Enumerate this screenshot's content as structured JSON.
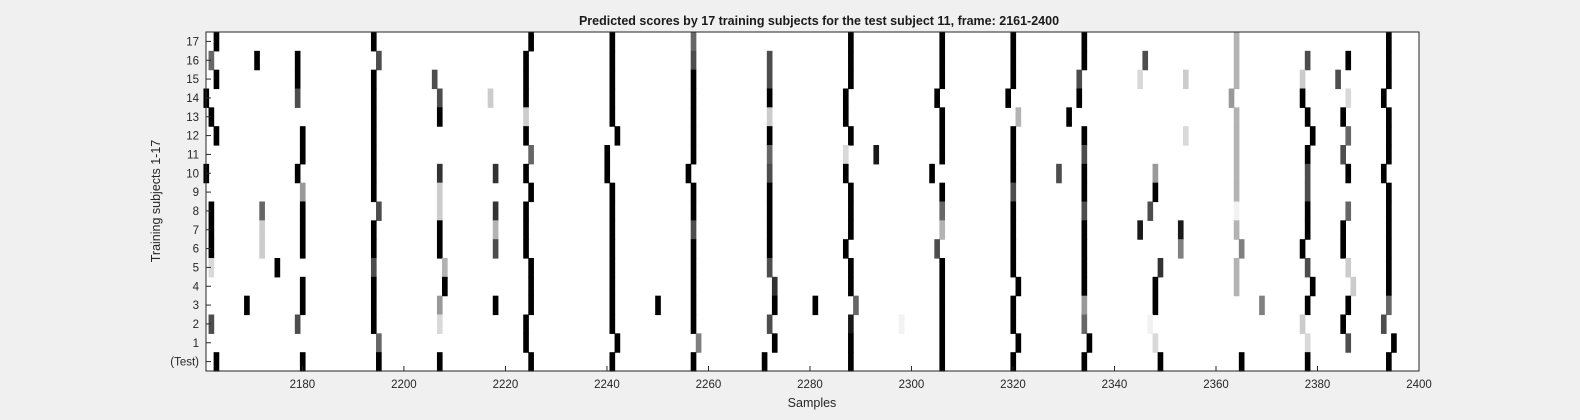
{
  "chart_data": {
    "type": "heatmap",
    "title": "Predicted scores by 17 training subjects for the test subject 11, frame: 2161-2400",
    "xlabel": "Samples",
    "ylabel": "Training subjects 1-17",
    "xlim": [
      2161,
      2400
    ],
    "x_ticks": [
      2180,
      2200,
      2220,
      2240,
      2260,
      2280,
      2300,
      2320,
      2340,
      2360,
      2380,
      2400
    ],
    "row_labels": [
      "17",
      "16",
      "15",
      "14",
      "13",
      "12",
      "11",
      "10",
      "9",
      "8",
      "7",
      "6",
      "5",
      "4",
      "3",
      "2",
      "1",
      "(Test)"
    ],
    "colormap": "gray (white = 0, black = 1)",
    "background_color": "#ffffff",
    "marks": [
      {
        "row": "17",
        "events": [
          [
            2163,
            1
          ],
          [
            2194,
            1
          ],
          [
            2225,
            1
          ],
          [
            2241,
            1
          ],
          [
            2257,
            0.6
          ],
          [
            2288,
            1
          ],
          [
            2306,
            1
          ],
          [
            2320,
            1
          ],
          [
            2334,
            1
          ],
          [
            2364,
            0.3
          ],
          [
            2394,
            1
          ]
        ]
      },
      {
        "row": "16",
        "events": [
          [
            2162,
            0.6
          ],
          [
            2171,
            1
          ],
          [
            2179,
            1
          ],
          [
            2195,
            0.7
          ],
          [
            2224,
            1
          ],
          [
            2241,
            1
          ],
          [
            2257,
            0.7
          ],
          [
            2272,
            0.7
          ],
          [
            2288,
            1
          ],
          [
            2306,
            1
          ],
          [
            2320,
            1
          ],
          [
            2334,
            1
          ],
          [
            2346,
            0.7
          ],
          [
            2364,
            0.3
          ],
          [
            2378,
            0.7
          ],
          [
            2386,
            1
          ],
          [
            2394,
            1
          ]
        ]
      },
      {
        "row": "15",
        "events": [
          [
            2163,
            1
          ],
          [
            2179,
            1
          ],
          [
            2194,
            1
          ],
          [
            2206,
            0.7
          ],
          [
            2224,
            1
          ],
          [
            2241,
            1
          ],
          [
            2257,
            1
          ],
          [
            2272,
            0.7
          ],
          [
            2288,
            1
          ],
          [
            2306,
            1
          ],
          [
            2320,
            1
          ],
          [
            2333,
            0.7
          ],
          [
            2345,
            0.15
          ],
          [
            2354,
            0.2
          ],
          [
            2364,
            0.3
          ],
          [
            2377,
            0.2
          ],
          [
            2384,
            0.7
          ],
          [
            2394,
            1
          ]
        ]
      },
      {
        "row": "14",
        "events": [
          [
            2161,
            1
          ],
          [
            2179,
            0.7
          ],
          [
            2194,
            1
          ],
          [
            2207,
            0.7
          ],
          [
            2217,
            0.2
          ],
          [
            2224,
            1
          ],
          [
            2241,
            1
          ],
          [
            2257,
            1
          ],
          [
            2272,
            1
          ],
          [
            2287,
            1
          ],
          [
            2305,
            1
          ],
          [
            2319,
            1
          ],
          [
            2333,
            1
          ],
          [
            2363,
            0.4
          ],
          [
            2377,
            1
          ],
          [
            2386,
            0.15
          ],
          [
            2393,
            1
          ]
        ]
      },
      {
        "row": "13",
        "events": [
          [
            2162,
            1
          ],
          [
            2194,
            1
          ],
          [
            2207,
            1
          ],
          [
            2224,
            0.2
          ],
          [
            2241,
            1
          ],
          [
            2257,
            1
          ],
          [
            2272,
            0.2
          ],
          [
            2287,
            1
          ],
          [
            2306,
            1
          ],
          [
            2321,
            0.3
          ],
          [
            2331,
            1
          ],
          [
            2364,
            0.3
          ],
          [
            2378,
            1
          ],
          [
            2385,
            1
          ],
          [
            2394,
            1
          ]
        ]
      },
      {
        "row": "12",
        "events": [
          [
            2163,
            1
          ],
          [
            2180,
            1
          ],
          [
            2194,
            1
          ],
          [
            2224,
            1
          ],
          [
            2242,
            1
          ],
          [
            2257,
            1
          ],
          [
            2272,
            1
          ],
          [
            2288,
            1
          ],
          [
            2306,
            1
          ],
          [
            2320,
            1
          ],
          [
            2334,
            1
          ],
          [
            2354,
            0.15
          ],
          [
            2364,
            0.3
          ],
          [
            2379,
            1
          ],
          [
            2386,
            0.6
          ],
          [
            2394,
            1
          ]
        ]
      },
      {
        "row": "11",
        "events": [
          [
            2180,
            1
          ],
          [
            2194,
            1
          ],
          [
            2225,
            0.6
          ],
          [
            2240,
            1
          ],
          [
            2257,
            1
          ],
          [
            2272,
            0.6
          ],
          [
            2287,
            0.15
          ],
          [
            2293,
            0.9
          ],
          [
            2306,
            1
          ],
          [
            2320,
            1
          ],
          [
            2334,
            0.7
          ],
          [
            2364,
            0.3
          ],
          [
            2378,
            1
          ],
          [
            2385,
            0.7
          ],
          [
            2394,
            1
          ]
        ]
      },
      {
        "row": "10",
        "events": [
          [
            2161,
            1
          ],
          [
            2179,
            1
          ],
          [
            2194,
            1
          ],
          [
            2207,
            0.8
          ],
          [
            2218,
            0.8
          ],
          [
            2224,
            1
          ],
          [
            2240,
            1
          ],
          [
            2256,
            1
          ],
          [
            2272,
            0.7
          ],
          [
            2287,
            1
          ],
          [
            2304,
            1
          ],
          [
            2320,
            1
          ],
          [
            2329,
            0.7
          ],
          [
            2334,
            1
          ],
          [
            2348,
            0.4
          ],
          [
            2364,
            0.3
          ],
          [
            2378,
            0.7
          ],
          [
            2386,
            1
          ],
          [
            2393,
            1
          ]
        ]
      },
      {
        "row": "9",
        "events": [
          [
            2180,
            0.4
          ],
          [
            2194,
            1
          ],
          [
            2207,
            0.2
          ],
          [
            2225,
            1
          ],
          [
            2241,
            1
          ],
          [
            2257,
            1
          ],
          [
            2272,
            1
          ],
          [
            2288,
            1
          ],
          [
            2306,
            1
          ],
          [
            2320,
            0.7
          ],
          [
            2334,
            1
          ],
          [
            2348,
            1
          ],
          [
            2364,
            0.3
          ],
          [
            2378,
            0.7
          ],
          [
            2394,
            1
          ]
        ]
      },
      {
        "row": "8",
        "events": [
          [
            2162,
            1
          ],
          [
            2172,
            0.6
          ],
          [
            2180,
            1
          ],
          [
            2195,
            0.7
          ],
          [
            2207,
            0.2
          ],
          [
            2218,
            0.8
          ],
          [
            2224,
            1
          ],
          [
            2241,
            1
          ],
          [
            2257,
            1
          ],
          [
            2272,
            1
          ],
          [
            2288,
            1
          ],
          [
            2306,
            0.6
          ],
          [
            2320,
            1
          ],
          [
            2334,
            0.7
          ],
          [
            2347,
            0.7
          ],
          [
            2364,
            0.05
          ],
          [
            2378,
            1
          ],
          [
            2386,
            0.6
          ],
          [
            2394,
            1
          ]
        ]
      },
      {
        "row": "7",
        "events": [
          [
            2162,
            1
          ],
          [
            2172,
            0.2
          ],
          [
            2180,
            1
          ],
          [
            2194,
            1
          ],
          [
            2207,
            1
          ],
          [
            2218,
            0.3
          ],
          [
            2224,
            1
          ],
          [
            2241,
            1
          ],
          [
            2257,
            0.7
          ],
          [
            2272,
            1
          ],
          [
            2288,
            1
          ],
          [
            2306,
            0.3
          ],
          [
            2320,
            1
          ],
          [
            2334,
            1
          ],
          [
            2345,
            0.9
          ],
          [
            2353,
            0.9
          ],
          [
            2364,
            0.3
          ],
          [
            2378,
            1
          ],
          [
            2385,
            1
          ],
          [
            2394,
            1
          ]
        ]
      },
      {
        "row": "6",
        "events": [
          [
            2162,
            1
          ],
          [
            2172,
            0.2
          ],
          [
            2180,
            1
          ],
          [
            2194,
            1
          ],
          [
            2207,
            1
          ],
          [
            2218,
            0.7
          ],
          [
            2224,
            1
          ],
          [
            2241,
            1
          ],
          [
            2257,
            1
          ],
          [
            2272,
            1
          ],
          [
            2287,
            1
          ],
          [
            2305,
            0.7
          ],
          [
            2320,
            1
          ],
          [
            2334,
            1
          ],
          [
            2353,
            0.5
          ],
          [
            2365,
            0.5
          ],
          [
            2377,
            1
          ],
          [
            2385,
            1
          ],
          [
            2394,
            1
          ]
        ]
      },
      {
        "row": "5",
        "events": [
          [
            2162,
            0.15
          ],
          [
            2175,
            1
          ],
          [
            2194,
            0.7
          ],
          [
            2208,
            0.3
          ],
          [
            2225,
            1
          ],
          [
            2241,
            1
          ],
          [
            2257,
            1
          ],
          [
            2272,
            0.7
          ],
          [
            2288,
            1
          ],
          [
            2306,
            1
          ],
          [
            2320,
            1
          ],
          [
            2334,
            1
          ],
          [
            2349,
            0.8
          ],
          [
            2364,
            0.3
          ],
          [
            2378,
            0.7
          ],
          [
            2386,
            0.2
          ],
          [
            2394,
            1
          ]
        ]
      },
      {
        "row": "4",
        "events": [
          [
            2180,
            1
          ],
          [
            2194,
            1
          ],
          [
            2208,
            1
          ],
          [
            2225,
            1
          ],
          [
            2241,
            1
          ],
          [
            2257,
            1
          ],
          [
            2273,
            0.8
          ],
          [
            2288,
            1
          ],
          [
            2306,
            1
          ],
          [
            2321,
            1
          ],
          [
            2334,
            1
          ],
          [
            2348,
            1
          ],
          [
            2364,
            0.3
          ],
          [
            2379,
            1
          ],
          [
            2387,
            0.2
          ],
          [
            2394,
            1
          ]
        ]
      },
      {
        "row": "3",
        "events": [
          [
            2169,
            1
          ],
          [
            2180,
            1
          ],
          [
            2194,
            1
          ],
          [
            2207,
            0.4
          ],
          [
            2218,
            1
          ],
          [
            2225,
            1
          ],
          [
            2241,
            1
          ],
          [
            2250,
            1
          ],
          [
            2257,
            1
          ],
          [
            2273,
            1
          ],
          [
            2281,
            1
          ],
          [
            2289,
            0.6
          ],
          [
            2306,
            1
          ],
          [
            2320,
            1
          ],
          [
            2334,
            0.4
          ],
          [
            2348,
            1
          ],
          [
            2369,
            0.5
          ],
          [
            2378,
            1
          ],
          [
            2386,
            1
          ],
          [
            2394,
            0.6
          ]
        ]
      },
      {
        "row": "2",
        "events": [
          [
            2162,
            0.7
          ],
          [
            2179,
            0.7
          ],
          [
            2194,
            1
          ],
          [
            2207,
            0.15
          ],
          [
            2224,
            1
          ],
          [
            2241,
            1
          ],
          [
            2257,
            1
          ],
          [
            2272,
            0.7
          ],
          [
            2288,
            0.9
          ],
          [
            2298,
            0.05
          ],
          [
            2306,
            1
          ],
          [
            2320,
            1
          ],
          [
            2334,
            0.6
          ],
          [
            2347,
            0.05
          ],
          [
            2377,
            0.2
          ],
          [
            2385,
            1
          ],
          [
            2393,
            0.7
          ]
        ]
      },
      {
        "row": "1",
        "events": [
          [
            2195,
            0.6
          ],
          [
            2224,
            1
          ],
          [
            2242,
            1
          ],
          [
            2258,
            0.5
          ],
          [
            2273,
            1
          ],
          [
            2288,
            1
          ],
          [
            2306,
            1
          ],
          [
            2321,
            1
          ],
          [
            2335,
            1
          ],
          [
            2348,
            0.15
          ],
          [
            2378,
            0.15
          ],
          [
            2386,
            0.7
          ],
          [
            2395,
            1
          ]
        ]
      },
      {
        "row": "(Test)",
        "events": [
          [
            2163,
            1
          ],
          [
            2180,
            1
          ],
          [
            2195,
            1
          ],
          [
            2207,
            1
          ],
          [
            2225,
            1
          ],
          [
            2241,
            1
          ],
          [
            2257,
            1
          ],
          [
            2271,
            1
          ],
          [
            2288,
            1
          ],
          [
            2306,
            1
          ],
          [
            2320,
            1
          ],
          [
            2334,
            1
          ],
          [
            2349,
            1
          ],
          [
            2365,
            1
          ],
          [
            2378,
            1
          ],
          [
            2394,
            1
          ]
        ]
      }
    ]
  }
}
